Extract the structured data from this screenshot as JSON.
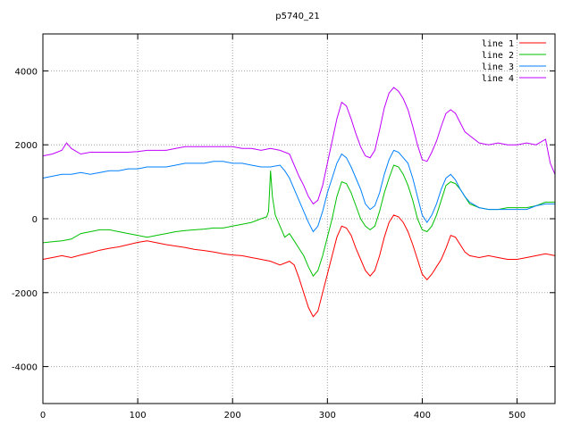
{
  "chart_data": {
    "type": "line",
    "title": "p5740_21",
    "xlabel": "",
    "ylabel": "",
    "xlim": [
      0,
      540
    ],
    "ylim": [
      -5000,
      5000
    ],
    "x_ticks": [
      0,
      100,
      200,
      300,
      400,
      500
    ],
    "y_ticks": [
      -4000,
      -2000,
      0,
      2000,
      4000
    ],
    "x_tick_labels": [
      "0",
      "100",
      "200",
      "300",
      "400",
      "500"
    ],
    "y_tick_labels": [
      "-4000",
      "-2000",
      "0",
      "2000",
      "4000"
    ],
    "grid": true,
    "legend_position": "top-right",
    "series": [
      {
        "name": "line 1",
        "color": "#ff0000",
        "points": [
          [
            0,
            -1100
          ],
          [
            10,
            -1050
          ],
          [
            20,
            -1000
          ],
          [
            30,
            -1050
          ],
          [
            40,
            -980
          ],
          [
            50,
            -920
          ],
          [
            60,
            -850
          ],
          [
            70,
            -800
          ],
          [
            80,
            -760
          ],
          [
            90,
            -700
          ],
          [
            100,
            -640
          ],
          [
            110,
            -600
          ],
          [
            120,
            -650
          ],
          [
            130,
            -700
          ],
          [
            140,
            -740
          ],
          [
            150,
            -780
          ],
          [
            160,
            -830
          ],
          [
            170,
            -860
          ],
          [
            180,
            -900
          ],
          [
            190,
            -950
          ],
          [
            200,
            -980
          ],
          [
            210,
            -1000
          ],
          [
            220,
            -1050
          ],
          [
            230,
            -1100
          ],
          [
            240,
            -1150
          ],
          [
            250,
            -1250
          ],
          [
            260,
            -1150
          ],
          [
            265,
            -1250
          ],
          [
            270,
            -1600
          ],
          [
            275,
            -2000
          ],
          [
            280,
            -2400
          ],
          [
            285,
            -2650
          ],
          [
            290,
            -2500
          ],
          [
            295,
            -2000
          ],
          [
            300,
            -1500
          ],
          [
            305,
            -1000
          ],
          [
            310,
            -500
          ],
          [
            315,
            -200
          ],
          [
            320,
            -250
          ],
          [
            325,
            -450
          ],
          [
            330,
            -800
          ],
          [
            335,
            -1100
          ],
          [
            340,
            -1400
          ],
          [
            345,
            -1550
          ],
          [
            350,
            -1400
          ],
          [
            355,
            -1000
          ],
          [
            360,
            -500
          ],
          [
            365,
            -100
          ],
          [
            370,
            100
          ],
          [
            375,
            50
          ],
          [
            380,
            -100
          ],
          [
            385,
            -350
          ],
          [
            390,
            -700
          ],
          [
            395,
            -1100
          ],
          [
            400,
            -1500
          ],
          [
            405,
            -1650
          ],
          [
            410,
            -1500
          ],
          [
            415,
            -1300
          ],
          [
            420,
            -1100
          ],
          [
            425,
            -800
          ],
          [
            430,
            -450
          ],
          [
            435,
            -500
          ],
          [
            440,
            -700
          ],
          [
            445,
            -900
          ],
          [
            450,
            -1000
          ],
          [
            460,
            -1050
          ],
          [
            470,
            -1000
          ],
          [
            480,
            -1050
          ],
          [
            490,
            -1100
          ],
          [
            500,
            -1100
          ],
          [
            510,
            -1050
          ],
          [
            520,
            -1000
          ],
          [
            530,
            -950
          ],
          [
            540,
            -1000
          ]
        ]
      },
      {
        "name": "line 2",
        "color": "#00c000",
        "points": [
          [
            0,
            -650
          ],
          [
            10,
            -620
          ],
          [
            20,
            -600
          ],
          [
            30,
            -550
          ],
          [
            40,
            -400
          ],
          [
            50,
            -350
          ],
          [
            60,
            -300
          ],
          [
            70,
            -300
          ],
          [
            80,
            -350
          ],
          [
            90,
            -400
          ],
          [
            100,
            -450
          ],
          [
            110,
            -500
          ],
          [
            120,
            -450
          ],
          [
            130,
            -400
          ],
          [
            140,
            -350
          ],
          [
            150,
            -320
          ],
          [
            160,
            -300
          ],
          [
            170,
            -280
          ],
          [
            180,
            -250
          ],
          [
            190,
            -250
          ],
          [
            200,
            -200
          ],
          [
            210,
            -150
          ],
          [
            220,
            -100
          ],
          [
            230,
            0
          ],
          [
            236,
            50
          ],
          [
            238,
            200
          ],
          [
            240,
            1300
          ],
          [
            242,
            600
          ],
          [
            245,
            100
          ],
          [
            250,
            -200
          ],
          [
            255,
            -500
          ],
          [
            260,
            -400
          ],
          [
            265,
            -600
          ],
          [
            270,
            -800
          ],
          [
            275,
            -1000
          ],
          [
            280,
            -1300
          ],
          [
            285,
            -1550
          ],
          [
            290,
            -1400
          ],
          [
            295,
            -1000
          ],
          [
            300,
            -500
          ],
          [
            305,
            0
          ],
          [
            310,
            600
          ],
          [
            315,
            1000
          ],
          [
            320,
            950
          ],
          [
            325,
            700
          ],
          [
            330,
            350
          ],
          [
            335,
            0
          ],
          [
            340,
            -200
          ],
          [
            345,
            -300
          ],
          [
            350,
            -200
          ],
          [
            355,
            200
          ],
          [
            360,
            700
          ],
          [
            365,
            1100
          ],
          [
            370,
            1450
          ],
          [
            375,
            1400
          ],
          [
            380,
            1200
          ],
          [
            385,
            900
          ],
          [
            390,
            500
          ],
          [
            395,
            0
          ],
          [
            400,
            -300
          ],
          [
            405,
            -350
          ],
          [
            410,
            -200
          ],
          [
            415,
            100
          ],
          [
            420,
            500
          ],
          [
            425,
            900
          ],
          [
            430,
            1000
          ],
          [
            435,
            950
          ],
          [
            440,
            800
          ],
          [
            445,
            600
          ],
          [
            450,
            400
          ],
          [
            460,
            300
          ],
          [
            470,
            250
          ],
          [
            480,
            250
          ],
          [
            490,
            300
          ],
          [
            500,
            300
          ],
          [
            510,
            300
          ],
          [
            520,
            350
          ],
          [
            530,
            450
          ],
          [
            540,
            450
          ]
        ]
      },
      {
        "name": "line 3",
        "color": "#0080ff",
        "points": [
          [
            0,
            1100
          ],
          [
            10,
            1150
          ],
          [
            20,
            1200
          ],
          [
            30,
            1200
          ],
          [
            40,
            1250
          ],
          [
            50,
            1200
          ],
          [
            60,
            1250
          ],
          [
            70,
            1300
          ],
          [
            80,
            1300
          ],
          [
            90,
            1350
          ],
          [
            100,
            1350
          ],
          [
            110,
            1400
          ],
          [
            120,
            1400
          ],
          [
            130,
            1400
          ],
          [
            140,
            1450
          ],
          [
            150,
            1500
          ],
          [
            160,
            1500
          ],
          [
            170,
            1500
          ],
          [
            180,
            1550
          ],
          [
            190,
            1550
          ],
          [
            200,
            1500
          ],
          [
            210,
            1500
          ],
          [
            220,
            1450
          ],
          [
            230,
            1400
          ],
          [
            240,
            1400
          ],
          [
            250,
            1450
          ],
          [
            255,
            1300
          ],
          [
            260,
            1100
          ],
          [
            265,
            800
          ],
          [
            270,
            500
          ],
          [
            275,
            200
          ],
          [
            280,
            -100
          ],
          [
            285,
            -350
          ],
          [
            290,
            -200
          ],
          [
            295,
            200
          ],
          [
            300,
            700
          ],
          [
            305,
            1100
          ],
          [
            310,
            1500
          ],
          [
            315,
            1750
          ],
          [
            320,
            1650
          ],
          [
            325,
            1400
          ],
          [
            330,
            1100
          ],
          [
            335,
            800
          ],
          [
            340,
            400
          ],
          [
            345,
            250
          ],
          [
            350,
            350
          ],
          [
            355,
            700
          ],
          [
            360,
            1200
          ],
          [
            365,
            1600
          ],
          [
            370,
            1850
          ],
          [
            375,
            1800
          ],
          [
            380,
            1650
          ],
          [
            385,
            1500
          ],
          [
            390,
            1100
          ],
          [
            395,
            600
          ],
          [
            400,
            100
          ],
          [
            405,
            -100
          ],
          [
            410,
            100
          ],
          [
            415,
            400
          ],
          [
            420,
            800
          ],
          [
            425,
            1100
          ],
          [
            430,
            1200
          ],
          [
            435,
            1050
          ],
          [
            440,
            800
          ],
          [
            445,
            600
          ],
          [
            450,
            450
          ],
          [
            460,
            300
          ],
          [
            470,
            250
          ],
          [
            480,
            250
          ],
          [
            490,
            250
          ],
          [
            500,
            250
          ],
          [
            510,
            250
          ],
          [
            520,
            350
          ],
          [
            530,
            400
          ],
          [
            540,
            400
          ]
        ]
      },
      {
        "name": "line 4",
        "color": "#c000ff",
        "points": [
          [
            0,
            1700
          ],
          [
            10,
            1750
          ],
          [
            20,
            1850
          ],
          [
            25,
            2050
          ],
          [
            30,
            1900
          ],
          [
            40,
            1750
          ],
          [
            50,
            1800
          ],
          [
            60,
            1800
          ],
          [
            70,
            1800
          ],
          [
            80,
            1800
          ],
          [
            90,
            1800
          ],
          [
            100,
            1820
          ],
          [
            110,
            1850
          ],
          [
            120,
            1850
          ],
          [
            130,
            1850
          ],
          [
            140,
            1900
          ],
          [
            150,
            1950
          ],
          [
            160,
            1950
          ],
          [
            170,
            1950
          ],
          [
            180,
            1950
          ],
          [
            190,
            1950
          ],
          [
            200,
            1950
          ],
          [
            210,
            1900
          ],
          [
            220,
            1900
          ],
          [
            230,
            1850
          ],
          [
            240,
            1900
          ],
          [
            250,
            1850
          ],
          [
            260,
            1750
          ],
          [
            265,
            1450
          ],
          [
            270,
            1150
          ],
          [
            275,
            900
          ],
          [
            280,
            600
          ],
          [
            285,
            400
          ],
          [
            290,
            500
          ],
          [
            295,
            900
          ],
          [
            300,
            1500
          ],
          [
            305,
            2100
          ],
          [
            310,
            2700
          ],
          [
            315,
            3150
          ],
          [
            320,
            3050
          ],
          [
            325,
            2700
          ],
          [
            330,
            2300
          ],
          [
            335,
            1950
          ],
          [
            340,
            1700
          ],
          [
            345,
            1650
          ],
          [
            350,
            1850
          ],
          [
            355,
            2400
          ],
          [
            360,
            3000
          ],
          [
            365,
            3400
          ],
          [
            370,
            3550
          ],
          [
            375,
            3450
          ],
          [
            380,
            3250
          ],
          [
            385,
            2950
          ],
          [
            390,
            2500
          ],
          [
            395,
            2000
          ],
          [
            400,
            1600
          ],
          [
            405,
            1550
          ],
          [
            410,
            1800
          ],
          [
            415,
            2100
          ],
          [
            420,
            2500
          ],
          [
            425,
            2850
          ],
          [
            430,
            2950
          ],
          [
            435,
            2850
          ],
          [
            440,
            2600
          ],
          [
            445,
            2350
          ],
          [
            450,
            2250
          ],
          [
            460,
            2050
          ],
          [
            470,
            2000
          ],
          [
            480,
            2050
          ],
          [
            490,
            2000
          ],
          [
            500,
            2000
          ],
          [
            510,
            2050
          ],
          [
            520,
            2000
          ],
          [
            530,
            2150
          ],
          [
            535,
            1500
          ],
          [
            540,
            1200
          ]
        ]
      }
    ]
  }
}
